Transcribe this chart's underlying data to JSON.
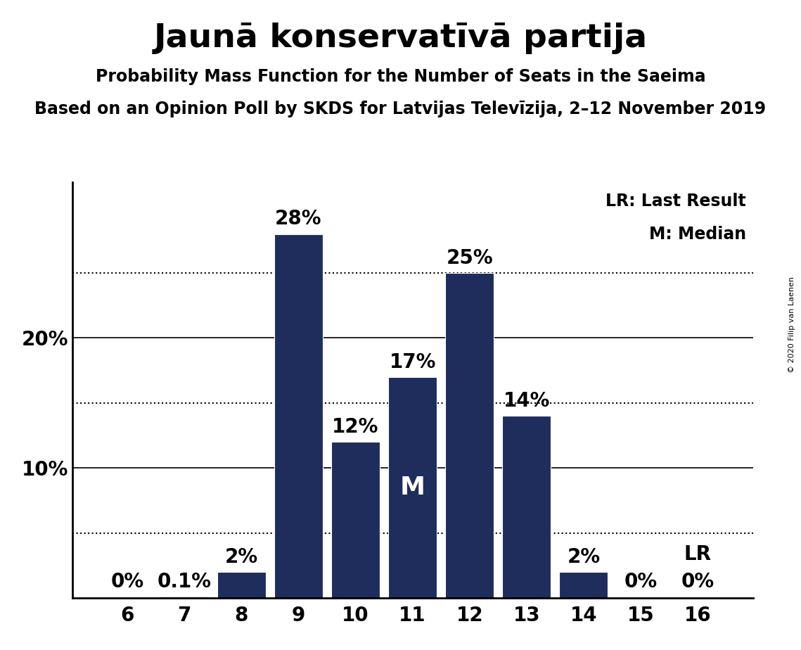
{
  "title": "Jaunā konservatīvā partija",
  "subtitle": "Probability Mass Function for the Number of Seats in the Saeima",
  "subsubtitle": "Based on an Opinion Poll by SKDS for Latvijas Televīzija, 2–12 November 2019",
  "copyright": "© 2020 Filip van Laenen",
  "categories": [
    6,
    7,
    8,
    9,
    10,
    11,
    12,
    13,
    14,
    15,
    16
  ],
  "values": [
    0.0,
    0.001,
    0.02,
    0.28,
    0.12,
    0.17,
    0.25,
    0.14,
    0.02,
    0.0,
    0.0
  ],
  "bar_labels": [
    "0%",
    "0.1%",
    "2%",
    "28%",
    "12%",
    "17%",
    "25%",
    "14%",
    "2%",
    "0%",
    "0%"
  ],
  "bar_color": "#1f2d5c",
  "median_label": "M",
  "median_bar": 11,
  "lr_bar": 16,
  "lr_label": "LR",
  "lr_legend": "LR: Last Result",
  "m_legend": "M: Median",
  "ylim": [
    0,
    0.32
  ],
  "yticks": [
    0.0,
    0.1,
    0.2
  ],
  "ytick_labels": [
    "",
    "10%",
    "20%"
  ],
  "dotted_lines": [
    0.05,
    0.15,
    0.25
  ],
  "background_color": "#ffffff",
  "title_fontsize": 34,
  "subtitle_fontsize": 17,
  "subsubtitle_fontsize": 17,
  "bar_label_fontsize": 20,
  "axis_fontsize": 20,
  "legend_fontsize": 17,
  "median_label_fontsize": 26
}
